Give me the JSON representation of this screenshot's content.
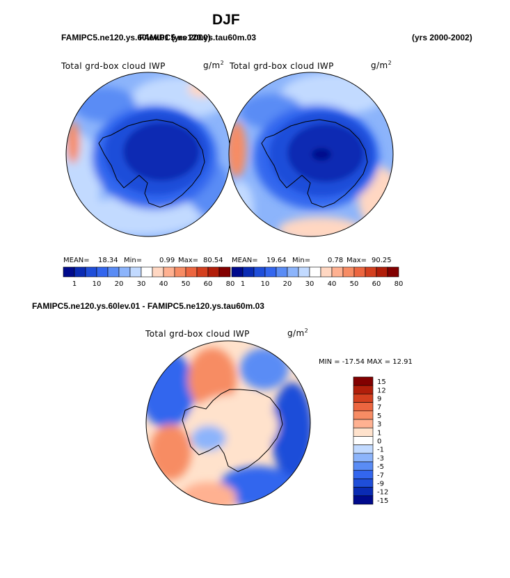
{
  "page": {
    "title": "DJF",
    "left_case": "FAMIPC5.ne120.ys.60lev.01 (yrs 2000)",
    "right_case": "FAMIPC5.ne120.ys.tau60m.03",
    "years": "(yrs 2000-2002)",
    "diff_title": "FAMIPC5.ne120.ys.60lev.01 - FAMIPC5.ne120.ys.tau60m.03"
  },
  "colors": {
    "abs_scale": [
      "#000a8c",
      "#0a2bb3",
      "#1f4ed9",
      "#3366ee",
      "#5a8cf5",
      "#8cb4fb",
      "#c2daff",
      "#ffffff",
      "#ffd7c2",
      "#ffb191",
      "#f78c64",
      "#ec6640",
      "#d4401f",
      "#b11e0a",
      "#820000"
    ],
    "diff_scale": [
      "#000a8c",
      "#0a2bb3",
      "#1f4ed9",
      "#3366ee",
      "#5a8cf5",
      "#8cb4fb",
      "#c2daff",
      "#ffffff",
      "#ffe2cc",
      "#ffb191",
      "#f78c64",
      "#ec6640",
      "#d4401f",
      "#b11e0a",
      "#820000"
    ]
  },
  "chart_data": [
    {
      "type": "heatmap",
      "projection": "south-polar stereographic",
      "title": "Total grd-box cloud IWP",
      "units": "g/m²",
      "stats": {
        "mean": 18.34,
        "min": 0.99,
        "max": 80.54
      },
      "stats_labels": {
        "mean": "MEAN=",
        "min": "Min=",
        "max": "Max="
      },
      "colorbar_ticks": [
        "1",
        "10",
        "20",
        "30",
        "40",
        "50",
        "60",
        "80"
      ]
    },
    {
      "type": "heatmap",
      "projection": "south-polar stereographic",
      "title": "Total grd-box cloud IWP",
      "units": "g/m²",
      "stats": {
        "mean": 19.64,
        "min": 0.78,
        "max": 90.25
      },
      "stats_labels": {
        "mean": "MEAN=",
        "min": "Min=",
        "max": "Max="
      },
      "colorbar_ticks": [
        "1",
        "10",
        "20",
        "30",
        "40",
        "50",
        "60",
        "80"
      ]
    },
    {
      "type": "heatmap",
      "projection": "south-polar stereographic",
      "title": "Total grd-box cloud IWP",
      "units": "g/m²",
      "stats_text": "MIN = -17.54 MAX =  12.91",
      "stats": {
        "min": -17.54,
        "max": 12.91
      },
      "colorbar_ticks": [
        "15",
        "12",
        "9",
        "7",
        "5",
        "3",
        "1",
        "0",
        "-1",
        "-3",
        "-5",
        "-7",
        "-9",
        "-12",
        "-15"
      ]
    }
  ]
}
